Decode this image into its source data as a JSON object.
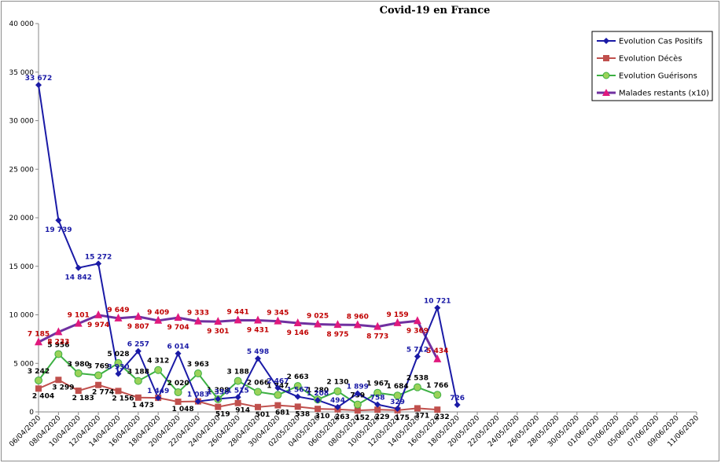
{
  "chart_data": {
    "type": "line",
    "title": "Covid-19 en France",
    "ylim": [
      0,
      40000
    ],
    "yticks": [
      "0",
      "5 000",
      "10 000",
      "15 000",
      "20 000",
      "25 000",
      "30 000",
      "35 000",
      "40 000"
    ],
    "x_dates": [
      "06/04/2020",
      "08/04/2020",
      "10/04/2020",
      "12/04/2020",
      "14/04/2020",
      "16/04/2020",
      "18/04/2020",
      "20/04/2020",
      "22/04/2020",
      "24/04/2020",
      "26/04/2020",
      "28/04/2020",
      "30/04/2020",
      "02/05/2020",
      "04/05/2020",
      "06/05/2020",
      "08/05/2020",
      "10/05/2020",
      "12/05/2020",
      "14/05/2020",
      "16/05/2020",
      "18/05/2020",
      "20/05/2020",
      "22/05/2020",
      "24/05/2020",
      "26/05/2020",
      "28/05/2020",
      "30/05/2020",
      "01/06/2020",
      "03/06/2020",
      "05/06/2020",
      "07/06/2020",
      "09/06/2020",
      "11/06/2020"
    ],
    "legend_position": "top-right",
    "grid": false,
    "series": [
      {
        "name": "Evolution Cas Positifs",
        "color": "#1a1aa6",
        "marker": "diamond",
        "points": [
          {
            "x": "06/04/2020",
            "y": 33672,
            "label": "33 672"
          },
          {
            "x": "08/04/2020",
            "y": 19739,
            "label": "19 739"
          },
          {
            "x": "10/04/2020",
            "y": 14842,
            "label": "14 842"
          },
          {
            "x": "12/04/2020",
            "y": 15272,
            "label": "15 272"
          },
          {
            "x": "14/04/2020",
            "y": 3930,
            "label": "3 930"
          },
          {
            "x": "16/04/2020",
            "y": 6257,
            "label": "6 257"
          },
          {
            "x": "18/04/2020",
            "y": 1449,
            "label": "1 449"
          },
          {
            "x": "20/04/2020",
            "y": 6014,
            "label": "6 014"
          },
          {
            "x": "22/04/2020",
            "y": 1083,
            "label": "1 083"
          },
          {
            "x": "24/04/2020",
            "y": 1336,
            "label": "1 336"
          },
          {
            "x": "26/04/2020",
            "y": 1515,
            "label": "1 515"
          },
          {
            "x": "28/04/2020",
            "y": 5498,
            "label": "5 498"
          },
          {
            "x": "30/04/2020",
            "y": 2467,
            "label": "2 467"
          },
          {
            "x": "02/05/2020",
            "y": 1567,
            "label": "1 567"
          },
          {
            "x": "04/05/2020",
            "y": 1208,
            "label": "1 208"
          },
          {
            "x": "06/05/2020",
            "y": 494,
            "label": "494"
          },
          {
            "x": "08/05/2020",
            "y": 1899,
            "label": "1 899"
          },
          {
            "x": "10/05/2020",
            "y": 758,
            "label": "758"
          },
          {
            "x": "12/05/2020",
            "y": 329,
            "label": "329"
          },
          {
            "x": "14/05/2020",
            "y": 5712,
            "label": "5 712"
          },
          {
            "x": "16/05/2020",
            "y": 10721,
            "label": "10 721"
          },
          {
            "x": "18/05/2020",
            "y": 726,
            "label": "726"
          }
        ]
      },
      {
        "name": "Evolution Décès",
        "color": "#c0504d",
        "marker": "square",
        "points": [
          {
            "x": "06/04/2020",
            "y": 2404,
            "label": "2 404"
          },
          {
            "x": "08/04/2020",
            "y": 3299,
            "label": "3 299"
          },
          {
            "x": "10/04/2020",
            "y": 2183,
            "label": "2 183"
          },
          {
            "x": "12/04/2020",
            "y": 2774,
            "label": "2 774"
          },
          {
            "x": "14/04/2020",
            "y": 2156,
            "label": "2 156"
          },
          {
            "x": "16/04/2020",
            "y": 1473,
            "label": "1 473"
          },
          {
            "x": "18/04/2020",
            "y": 1449,
            "label": ""
          },
          {
            "x": "20/04/2020",
            "y": 1048,
            "label": "1 048"
          },
          {
            "x": "22/04/2020",
            "y": 1083,
            "label": ""
          },
          {
            "x": "24/04/2020",
            "y": 519,
            "label": "519"
          },
          {
            "x": "26/04/2020",
            "y": 914,
            "label": "914"
          },
          {
            "x": "28/04/2020",
            "y": 501,
            "label": "501"
          },
          {
            "x": "30/04/2020",
            "y": 681,
            "label": "681"
          },
          {
            "x": "02/05/2020",
            "y": 538,
            "label": "538"
          },
          {
            "x": "04/05/2020",
            "y": 310,
            "label": "310"
          },
          {
            "x": "06/05/2020",
            "y": 263,
            "label": "263"
          },
          {
            "x": "08/05/2020",
            "y": 152,
            "label": "152"
          },
          {
            "x": "10/05/2020",
            "y": 229,
            "label": "229"
          },
          {
            "x": "12/05/2020",
            "y": 175,
            "label": "175"
          },
          {
            "x": "14/05/2020",
            "y": 371,
            "label": "371"
          },
          {
            "x": "16/05/2020",
            "y": 232,
            "label": "232"
          }
        ]
      },
      {
        "name": "Evolution Guérisons",
        "color": "#3cb043",
        "marker": "circle",
        "points": [
          {
            "x": "06/04/2020",
            "y": 3242,
            "label": "3 242"
          },
          {
            "x": "08/04/2020",
            "y": 5956,
            "label": "5 956"
          },
          {
            "x": "10/04/2020",
            "y": 3980,
            "label": "3 980"
          },
          {
            "x": "12/04/2020",
            "y": 3769,
            "label": "3 769"
          },
          {
            "x": "14/04/2020",
            "y": 5028,
            "label": "5 028"
          },
          {
            "x": "16/04/2020",
            "y": 3188,
            "label": "3 188"
          },
          {
            "x": "18/04/2020",
            "y": 4312,
            "label": "4 312"
          },
          {
            "x": "20/04/2020",
            "y": 2020,
            "label": "2 020"
          },
          {
            "x": "22/04/2020",
            "y": 3963,
            "label": "3 963"
          },
          {
            "x": "24/04/2020",
            "y": 1308,
            "label": "1 308"
          },
          {
            "x": "26/04/2020",
            "y": 3188,
            "label": "3 188"
          },
          {
            "x": "28/04/2020",
            "y": 2066,
            "label": "2 066"
          },
          {
            "x": "30/04/2020",
            "y": 1747,
            "label": "1 747"
          },
          {
            "x": "02/05/2020",
            "y": 2663,
            "label": "2 663"
          },
          {
            "x": "04/05/2020",
            "y": 1280,
            "label": "1 280"
          },
          {
            "x": "06/05/2020",
            "y": 2130,
            "label": "2 130"
          },
          {
            "x": "08/05/2020",
            "y": 759,
            "label": "759"
          },
          {
            "x": "10/05/2020",
            "y": 1967,
            "label": "1 967"
          },
          {
            "x": "12/05/2020",
            "y": 1684,
            "label": "1 684"
          },
          {
            "x": "14/05/2020",
            "y": 2538,
            "label": "2 538"
          },
          {
            "x": "16/05/2020",
            "y": 1766,
            "label": "1 766"
          }
        ]
      },
      {
        "name": "Malades restants (x10)",
        "color": "#7030a0",
        "marker": "triangle",
        "marker_color": "#e0197d",
        "label_color": "#c00000",
        "points": [
          {
            "x": "06/04/2020",
            "y": 7185,
            "label": "7 185"
          },
          {
            "x": "08/04/2020",
            "y": 8233,
            "label": "8 233"
          },
          {
            "x": "10/04/2020",
            "y": 9101,
            "label": "9 101"
          },
          {
            "x": "12/04/2020",
            "y": 9974,
            "label": "9 974"
          },
          {
            "x": "14/04/2020",
            "y": 9649,
            "label": "9 649"
          },
          {
            "x": "16/04/2020",
            "y": 9807,
            "label": "9 807"
          },
          {
            "x": "18/04/2020",
            "y": 9409,
            "label": "9 409"
          },
          {
            "x": "20/04/2020",
            "y": 9704,
            "label": "9 704"
          },
          {
            "x": "22/04/2020",
            "y": 9333,
            "label": "9 333"
          },
          {
            "x": "24/04/2020",
            "y": 9301,
            "label": "9 301"
          },
          {
            "x": "26/04/2020",
            "y": 9441,
            "label": "9 441"
          },
          {
            "x": "28/04/2020",
            "y": 9431,
            "label": "9 431"
          },
          {
            "x": "30/04/2020",
            "y": 9345,
            "label": "9 345"
          },
          {
            "x": "02/05/2020",
            "y": 9146,
            "label": "9 146"
          },
          {
            "x": "04/05/2020",
            "y": 9025,
            "label": "9 025"
          },
          {
            "x": "06/05/2020",
            "y": 8975,
            "label": "8 975"
          },
          {
            "x": "08/05/2020",
            "y": 8960,
            "label": "8 960"
          },
          {
            "x": "10/05/2020",
            "y": 8773,
            "label": "8 773"
          },
          {
            "x": "12/05/2020",
            "y": 9159,
            "label": "9 159"
          },
          {
            "x": "14/05/2020",
            "y": 9369,
            "label": "9 369"
          },
          {
            "x": "16/05/2020",
            "y": 5434,
            "label": "5 434"
          }
        ]
      }
    ]
  }
}
